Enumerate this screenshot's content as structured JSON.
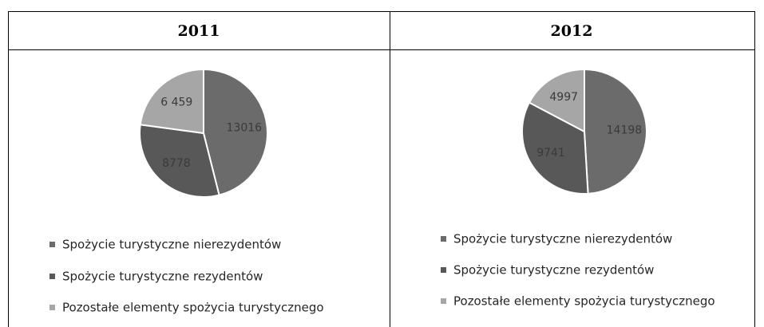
{
  "chart_data": [
    {
      "type": "pie",
      "title": "2011",
      "categories": [
        "Spożycie turystyczne nierezydentów",
        "Spożycie turystyczne rezydentów",
        "Pozostałe elementy spożycia turystycznego"
      ],
      "values": [
        13016,
        8778,
        6459
      ],
      "value_labels": [
        "13016",
        "8778",
        "6 459"
      ],
      "colors": [
        "#6b6b6b",
        "#585858",
        "#a6a6a6"
      ]
    },
    {
      "type": "pie",
      "title": "2012",
      "categories": [
        "Spożycie turystyczne nierezydentów",
        "Spożycie turystyczne rezydentów",
        "Pozostałe elementy spożycia turystycznego"
      ],
      "values": [
        14198,
        9741,
        4997
      ],
      "colors": [
        "#6b6b6b",
        "#585858",
        "#a6a6a6"
      ]
    }
  ]
}
